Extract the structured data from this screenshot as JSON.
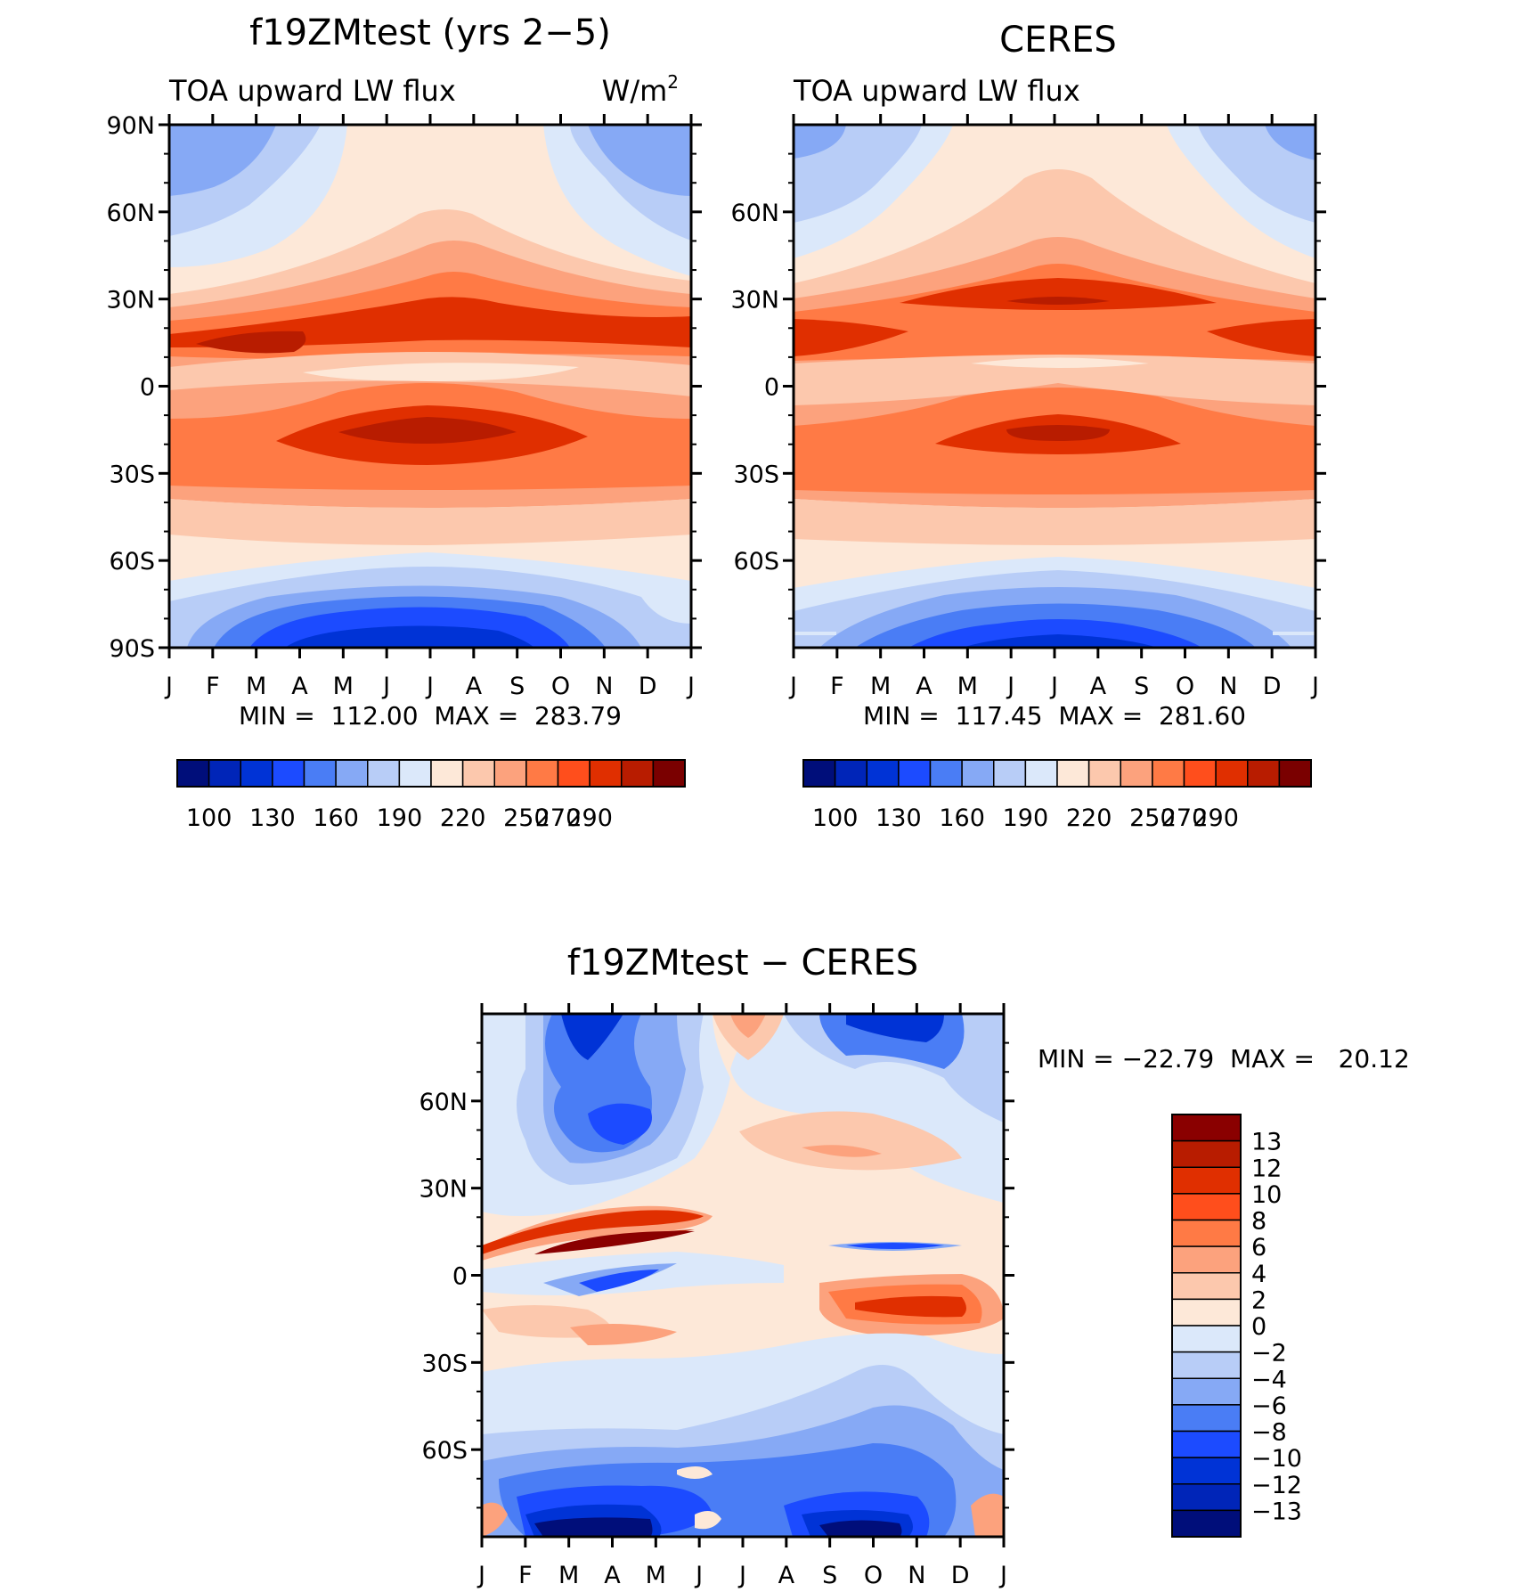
{
  "chart_data": [
    {
      "type": "heatmap",
      "title": "f19ZMtest (yrs 2−5)",
      "left_subtitle": "TOA upward LW flux",
      "right_subtitle": "W/m",
      "units_superscript": "2",
      "x_tick_labels": [
        "J",
        "F",
        "M",
        "A",
        "M",
        "J",
        "J",
        "A",
        "S",
        "O",
        "N",
        "D",
        "J"
      ],
      "y_tick_labels": [
        "90N",
        "60N",
        "30N",
        "0",
        "30S",
        "60S",
        "90S"
      ],
      "ylim": [
        -90,
        90
      ],
      "stats": "MIN =  112.00  MAX =  283.79",
      "colorbar_labels": [
        "100",
        "130",
        "160",
        "190",
        "220",
        "250",
        "270",
        "290"
      ],
      "colorbar_colors": [
        "#000e7a",
        "#0025b8",
        "#0033d6",
        "#1c4bff",
        "#4a7df5",
        "#86a9f5",
        "#b8cdf7",
        "#dbe8fa",
        "#fde8d8",
        "#fcc8ad",
        "#fca27d",
        "#ff7a45",
        "#ff4e1c",
        "#e02f00",
        "#b81c00",
        "#7a0000"
      ]
    },
    {
      "type": "heatmap",
      "title": "CERES",
      "left_subtitle": "TOA upward LW flux",
      "x_tick_labels": [
        "J",
        "F",
        "M",
        "A",
        "M",
        "J",
        "J",
        "A",
        "S",
        "O",
        "N",
        "D",
        "J"
      ],
      "y_tick_labels": [
        "60N",
        "30N",
        "0",
        "30S",
        "60S"
      ],
      "ylim": [
        -90,
        90
      ],
      "stats": "MIN =  117.45  MAX =  281.60",
      "colorbar_labels": [
        "100",
        "130",
        "160",
        "190",
        "220",
        "250",
        "270",
        "290"
      ]
    },
    {
      "type": "heatmap",
      "title": "f19ZMtest − CERES",
      "x_tick_labels": [
        "J",
        "F",
        "M",
        "A",
        "M",
        "J",
        "J",
        "A",
        "S",
        "O",
        "N",
        "D",
        "J"
      ],
      "y_tick_labels": [
        "60N",
        "30N",
        "0",
        "30S",
        "60S"
      ],
      "ylim": [
        -90,
        90
      ],
      "stats": "MIN = −22.79  MAX =   20.12",
      "colorbar_labels": [
        "13",
        "12",
        "10",
        "8",
        "6",
        "4",
        "2",
        "0",
        "−2",
        "−4",
        "−6",
        "−8",
        "−10",
        "−12",
        "−13"
      ],
      "colorbar_colors": [
        "#8a0000",
        "#b81c00",
        "#e02f00",
        "#ff4e1c",
        "#ff7a45",
        "#fca27d",
        "#fcc8ad",
        "#fde8d8",
        "#dbe8fa",
        "#b8cdf7",
        "#86a9f5",
        "#4a7df5",
        "#1c4bff",
        "#0033d6",
        "#0025b8",
        "#000e7a"
      ]
    }
  ]
}
